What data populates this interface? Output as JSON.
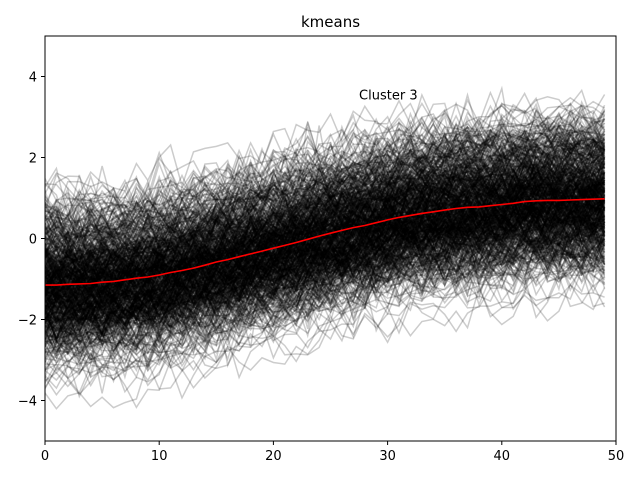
{
  "chart_data": {
    "type": "line",
    "title": "kmeans",
    "xlabel": "",
    "ylabel": "",
    "xlim": [
      0,
      50
    ],
    "ylim": [
      -5,
      5
    ],
    "x_ticks": [
      0,
      10,
      20,
      30,
      40,
      50
    ],
    "y_ticks": [
      -4,
      -2,
      0,
      2,
      4
    ],
    "grid": false,
    "annotation": {
      "text": "Cluster 3",
      "x": 27.5,
      "y": 3.55
    },
    "background_series": {
      "description_color": "#000000",
      "opacity": 0.2,
      "count": 600,
      "spread": 0.85
    },
    "series": [
      {
        "color": "#ff0000",
        "x": [
          0,
          1,
          2,
          3,
          4,
          5,
          6,
          7,
          8,
          9,
          10,
          11,
          12,
          13,
          14,
          15,
          16,
          17,
          18,
          19,
          20,
          21,
          22,
          23,
          24,
          25,
          26,
          27,
          28,
          29,
          30,
          31,
          32,
          33,
          34,
          35,
          36,
          37,
          38,
          39,
          40,
          41,
          42,
          43,
          44,
          45,
          46,
          47,
          48,
          49
        ],
        "values": [
          -1.15,
          -1.15,
          -1.13,
          -1.12,
          -1.11,
          -1.08,
          -1.06,
          -1.02,
          -0.98,
          -0.95,
          -0.9,
          -0.84,
          -0.79,
          -0.73,
          -0.66,
          -0.58,
          -0.52,
          -0.45,
          -0.38,
          -0.31,
          -0.24,
          -0.17,
          -0.1,
          -0.02,
          0.06,
          0.13,
          0.2,
          0.27,
          0.32,
          0.39,
          0.46,
          0.52,
          0.57,
          0.62,
          0.66,
          0.7,
          0.74,
          0.77,
          0.78,
          0.81,
          0.84,
          0.87,
          0.91,
          0.93,
          0.94,
          0.94,
          0.95,
          0.96,
          0.97,
          0.98
        ]
      }
    ]
  }
}
